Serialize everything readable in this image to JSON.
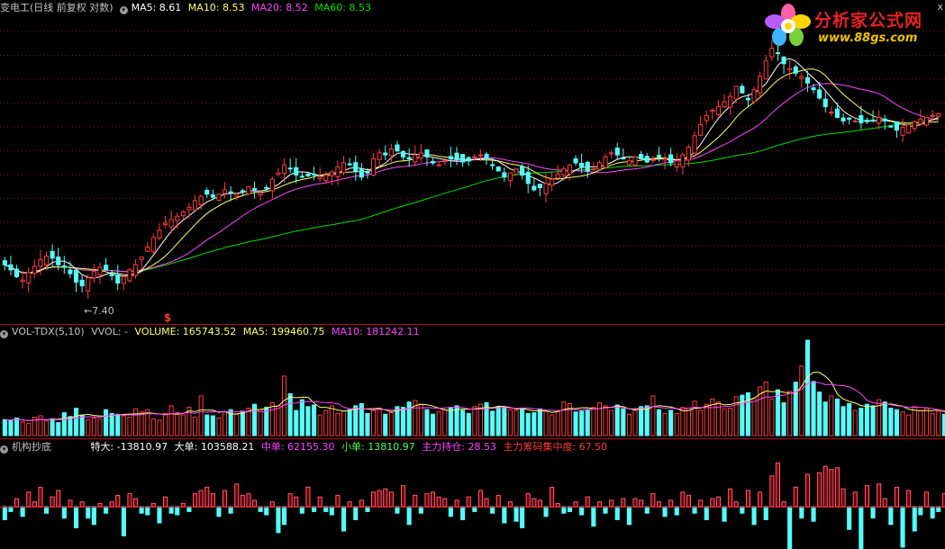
{
  "header": {
    "title": "变电工(日线 前复权 对数)",
    "ma5_label": "MA5: 8.61",
    "ma10_label": "MA10: 8.53",
    "ma20_label": "MA20: 8.52",
    "ma60_label": "MA60: 8.53",
    "close_glyph": "x"
  },
  "volume_legend": {
    "name": "VOL-TDX(5,10)",
    "vvol": "VVOL: -",
    "volume": "VOLUME: 165743.52",
    "ma5": "MA5: 199460.75",
    "ma10": "MA10: 181242.11"
  },
  "indicator_legend": {
    "name": "机构抄底",
    "tedai": "特大: -13810.97",
    "dadan": "大单: 103588.21",
    "zhongdan": "中单: 62155.30",
    "xiaodan": "小单: 13810.97",
    "chicang": "主力持仓: 28.53",
    "jizhong": "主力筹码集中度: 67.50"
  },
  "watermark": {
    "title": "分析家公式网",
    "url": "www.88gs.com"
  },
  "colors": {
    "up": "#ff3b3b",
    "down": "#54ffff",
    "ma5": "#ffffff",
    "ma10": "#ffff66",
    "ma20": "#ff44ff",
    "ma60": "#00e000",
    "grid": "#7a1a1a",
    "separator": "#b01010",
    "title": "#c0c0c0",
    "indicator_up": "#ff5a7a"
  },
  "chart_data": [
    {
      "type": "candlestick",
      "title": "变电工(日线 前复权 对数)",
      "y_scale": "log",
      "series": [
        {
          "name": "MA5",
          "last": 8.61
        },
        {
          "name": "MA10",
          "last": 8.53
        },
        {
          "name": "MA20",
          "last": 8.52
        },
        {
          "name": "MA60",
          "last": 8.53
        }
      ],
      "annotations": [
        {
          "text": "←7.40",
          "kind": "low-marker"
        },
        {
          "text": "$",
          "kind": "signal-marker"
        }
      ],
      "closes": [
        7.95,
        7.85,
        7.72,
        7.66,
        7.8,
        7.92,
        8.05,
        8.12,
        8.08,
        7.95,
        7.9,
        7.78,
        7.62,
        7.55,
        7.7,
        7.82,
        7.9,
        7.85,
        7.74,
        7.6,
        7.72,
        7.85,
        7.95,
        8.1,
        8.3,
        8.5,
        8.65,
        8.8,
        8.88,
        8.95,
        9.05,
        9.15,
        9.3,
        9.4,
        9.45,
        9.38,
        9.45,
        9.55,
        9.5,
        9.45,
        9.5,
        9.62,
        9.55,
        9.48,
        9.6,
        9.8,
        9.95,
        10.15,
        10.05,
        9.9,
        9.85,
        9.88,
        9.92,
        9.85,
        9.9,
        9.98,
        10.1,
        10.2,
        10.15,
        10.0,
        9.85,
        9.95,
        10.3,
        10.45,
        10.4,
        10.55,
        10.5,
        10.35,
        10.3,
        10.4,
        10.45,
        10.35,
        10.2,
        10.15,
        10.25,
        10.3,
        10.28,
        10.22,
        10.25,
        10.35,
        10.4,
        10.3,
        10.15,
        10.0,
        9.85,
        9.95,
        10.05,
        9.9,
        9.7,
        9.55,
        9.6,
        9.7,
        9.8,
        9.92,
        10.05,
        10.15,
        10.2,
        10.1,
        10.0,
        10.05,
        10.2,
        10.35,
        10.45,
        10.4,
        10.3,
        10.25,
        10.35,
        10.3,
        10.22,
        10.28,
        10.35,
        10.3,
        10.2,
        10.25,
        10.4,
        10.6,
        10.9,
        11.2,
        11.45,
        11.6,
        11.7,
        11.85,
        12.0,
        12.3,
        12.1,
        11.9,
        12.2,
        12.6,
        13.1,
        13.5,
        13.35,
        13.0,
        12.85,
        12.7,
        12.6,
        12.4,
        12.2,
        11.95,
        11.7,
        11.55,
        11.4,
        11.3,
        11.35,
        11.3,
        11.25,
        11.28,
        11.32,
        11.4,
        11.3,
        11.15,
        11.05,
        11.12,
        11.2,
        11.28,
        11.35,
        11.4,
        11.45,
        11.5
      ]
    },
    {
      "type": "bar",
      "title": "VOL-TDX(5,10)",
      "series": [
        {
          "name": "VOLUME",
          "last": 165743.52
        },
        {
          "name": "MA5",
          "last": 199460.75
        },
        {
          "name": "MA10",
          "last": 181242.11
        }
      ],
      "values": [
        21,
        20,
        23,
        18,
        16,
        24,
        26,
        19,
        22,
        17,
        30,
        25,
        36,
        27,
        21,
        23,
        22,
        34,
        29,
        28,
        26,
        24,
        35,
        31,
        34,
        22,
        20,
        29,
        39,
        30,
        27,
        37,
        24,
        52,
        27,
        26,
        23,
        31,
        34,
        28,
        32,
        36,
        41,
        34,
        37,
        43,
        39,
        78,
        55,
        33,
        47,
        38,
        40,
        27,
        33,
        39,
        29,
        32,
        34,
        39,
        42,
        29,
        33,
        36,
        28,
        30,
        38,
        37,
        44,
        46,
        41,
        34,
        28,
        31,
        34,
        37,
        39,
        33,
        29,
        38,
        41,
        43,
        32,
        38,
        37,
        34,
        33,
        36,
        29,
        30,
        35,
        32,
        27,
        33,
        44,
        42,
        31,
        32,
        34,
        37,
        43,
        39,
        33,
        40,
        35,
        28,
        33,
        38,
        39,
        52,
        34,
        29,
        33,
        29,
        37,
        36,
        45,
        33,
        41,
        48,
        44,
        35,
        36,
        51,
        53,
        56,
        49,
        64,
        70,
        48,
        60,
        43,
        58,
        70,
        91,
        125,
        71,
        57,
        44,
        52,
        48,
        38,
        42,
        33,
        36,
        41,
        39,
        47,
        44,
        36,
        34,
        31,
        27,
        38,
        33,
        36,
        29,
        32,
        28,
        33,
        40,
        37,
        34,
        29,
        32,
        31,
        33,
        27,
        30
      ]
    },
    {
      "type": "bar",
      "title": "机构抄底",
      "series": [
        {
          "name": "特大",
          "last": -13810.97
        },
        {
          "name": "大单",
          "last": 103588.21
        },
        {
          "name": "中单",
          "last": 62155.3
        },
        {
          "name": "小单",
          "last": 13810.97
        },
        {
          "name": "主力持仓",
          "last": 28.53
        },
        {
          "name": "主力筹码集中度",
          "last": 67.5
        }
      ],
      "values": [
        -8,
        -3,
        5,
        -6,
        9,
        3,
        12,
        -4,
        6,
        10,
        -7,
        4,
        -13,
        3,
        -7,
        -11,
        2,
        -4,
        3,
        7,
        -18,
        8,
        5,
        -4,
        -5,
        2,
        -10,
        6,
        -4,
        -5,
        2,
        -3,
        8,
        10,
        12,
        8,
        -6,
        10,
        -4,
        14,
        7,
        8,
        4,
        -3,
        -5,
        3,
        -16,
        -11,
        8,
        6,
        -4,
        12,
        -3,
        6,
        -3,
        -5,
        7,
        -15,
        3,
        -8,
        4,
        -3,
        9,
        10,
        11,
        9,
        -4,
        13,
        -11,
        7,
        -4,
        8,
        9,
        6,
        5,
        -6,
        4,
        -8,
        6,
        -3,
        10,
        5,
        -4,
        7,
        -10,
        3,
        -9,
        -13,
        8,
        5,
        4,
        -6,
        12,
        2,
        -4,
        -3,
        3,
        -5,
        6,
        -12,
        3,
        -4,
        4,
        -8,
        5,
        -11,
        5,
        4,
        -4,
        8,
        3,
        -6,
        4,
        -5,
        9,
        7,
        -4,
        4,
        -8,
        5,
        6,
        -9,
        11,
        3,
        -4,
        10,
        -11,
        9,
        -8,
        19,
        27,
        3,
        -27,
        12,
        -7,
        20,
        -9,
        21,
        25,
        23,
        24,
        11,
        -14,
        9,
        -30,
        13,
        -7,
        14,
        5,
        -11,
        12,
        -25,
        10,
        -15,
        -5,
        9,
        -7,
        -3,
        8,
        6,
        10,
        -8,
        4,
        -3,
        -7,
        6,
        3,
        10,
        8,
        12,
        -3,
        8,
        -5,
        11
      ]
    }
  ]
}
